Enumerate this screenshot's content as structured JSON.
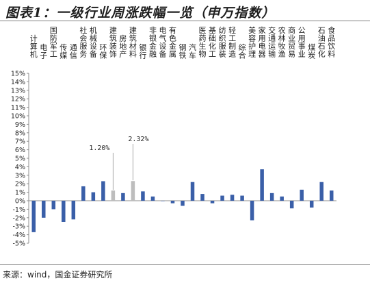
{
  "header": {
    "title": "图表1：一级行业周涨跌幅一览（申万指数）"
  },
  "footer": {
    "source": "来源：wind，国金证券研究所"
  },
  "colors": {
    "default_bar": "#3a5fa8",
    "highlight_bar": "#bdbdbd",
    "axis": "#8c8c8c"
  },
  "chart_data": {
    "type": "bar",
    "title": "一级行业周涨跌幅一览（申万指数）",
    "xlabel": "",
    "ylabel": "",
    "ylim": [
      -5,
      15
    ],
    "y_tick_step": 1,
    "y_tick_format": "percent",
    "grid": false,
    "categories": [
      "计算机",
      "电子",
      "国防军工",
      "传媒",
      "通信",
      "社会服务",
      "机械设备",
      "环保",
      "建筑装饰",
      "房地产",
      "建筑材料",
      "银行",
      "非银金融",
      "电气设备",
      "有色金属",
      "钢铁",
      "汽车",
      "医药生物",
      "基础化工",
      "纺织服装",
      "轻工制造",
      "综合",
      "美容护理",
      "家用电器",
      "交通运输",
      "农林牧渔",
      "商业贸易",
      "公用事业",
      "煤炭",
      "石油石化",
      "食品饮料"
    ],
    "values": [
      -3.7,
      -2.0,
      -1.0,
      -2.5,
      -2.2,
      1.7,
      1.0,
      2.3,
      1.2,
      0.9,
      2.32,
      1.1,
      0.5,
      0.0,
      -0.3,
      -0.6,
      2.2,
      0.8,
      -0.3,
      0.6,
      0.7,
      0.6,
      -2.3,
      3.7,
      0.9,
      0.5,
      -0.9,
      1.3,
      -0.8,
      2.2,
      1.2
    ],
    "highlighted": [
      "建筑装饰",
      "建筑材料"
    ],
    "annotations": [
      {
        "category": "建筑装饰",
        "text": "1.20%"
      },
      {
        "category": "建筑材料",
        "text": "2.32%"
      }
    ]
  }
}
